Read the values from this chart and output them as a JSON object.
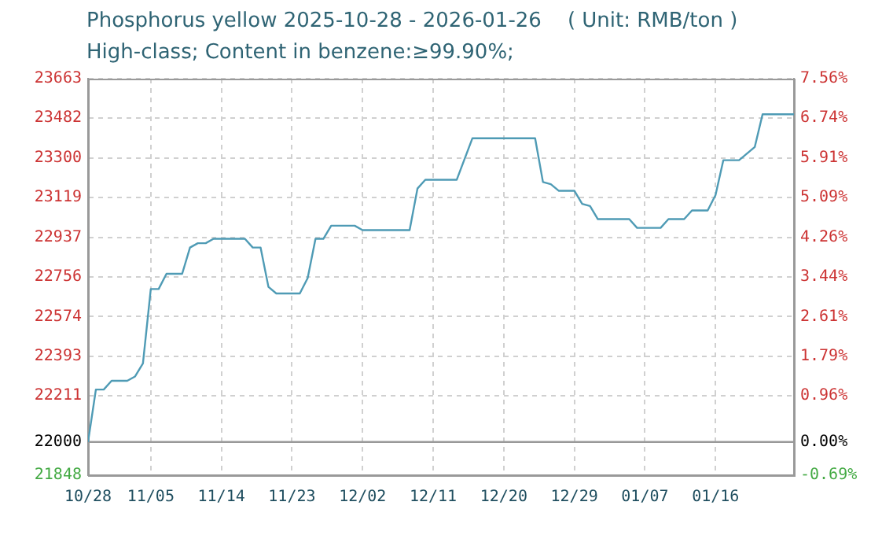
{
  "chart_data": {
    "type": "line",
    "title": "Phosphorus yellow 2025-10-28 - 2026-01-26    ( Unit: RMB/ton )",
    "subtitle": "High-class; Content in benzene:≥99.90%;",
    "x": [
      "2025-10-28",
      "2025-10-29",
      "2025-10-30",
      "2025-10-31",
      "2025-11-02",
      "2025-11-03",
      "2025-11-04",
      "2025-11-05",
      "2025-11-06",
      "2025-11-07",
      "2025-11-09",
      "2025-11-10",
      "2025-11-11",
      "2025-11-12",
      "2025-11-13",
      "2025-11-17",
      "2025-11-18",
      "2025-11-19",
      "2025-11-20",
      "2025-11-21",
      "2025-11-24",
      "2025-11-25",
      "2025-11-26",
      "2025-11-27",
      "2025-11-28",
      "2025-12-01",
      "2025-12-02",
      "2025-12-08",
      "2025-12-09",
      "2025-12-10",
      "2025-12-14",
      "2025-12-16",
      "2025-12-24",
      "2025-12-25",
      "2025-12-26",
      "2025-12-27",
      "2025-12-29",
      "2025-12-30",
      "2025-12-31",
      "2026-01-01",
      "2026-01-05",
      "2026-01-06",
      "2026-01-09",
      "2026-01-10",
      "2026-01-12",
      "2026-01-13",
      "2026-01-15",
      "2026-01-16",
      "2026-01-17",
      "2026-01-19",
      "2026-01-21",
      "2026-01-22",
      "2026-01-26"
    ],
    "series": [
      {
        "color": "#4f9bb5",
        "values": [
          22000,
          22240,
          22240,
          22280,
          22280,
          22300,
          22360,
          22700,
          22700,
          22770,
          22770,
          22890,
          22910,
          22910,
          22930,
          22930,
          22890,
          22890,
          22710,
          22680,
          22680,
          22750,
          22930,
          22930,
          22990,
          22990,
          22970,
          22970,
          23160,
          23200,
          23200,
          23390,
          23390,
          23190,
          23180,
          23150,
          23150,
          23090,
          23080,
          23020,
          23020,
          22980,
          22980,
          23020,
          23020,
          23060,
          23060,
          23130,
          23290,
          23290,
          23350,
          23500,
          23500
        ]
      }
    ],
    "xlim": [
      "2025-10-28",
      "2026-01-26"
    ],
    "xticks": [
      {
        "value": "2025-10-28",
        "label": "10/28"
      },
      {
        "value": "2025-11-05",
        "label": "11/05"
      },
      {
        "value": "2025-11-14",
        "label": "11/14"
      },
      {
        "value": "2025-11-23",
        "label": "11/23"
      },
      {
        "value": "2025-12-02",
        "label": "12/02"
      },
      {
        "value": "2025-12-11",
        "label": "12/11"
      },
      {
        "value": "2025-12-20",
        "label": "12/20"
      },
      {
        "value": "2025-12-29",
        "label": "12/29"
      },
      {
        "value": "2026-01-07",
        "label": "01/07"
      },
      {
        "value": "2026-01-16",
        "label": "01/16"
      }
    ],
    "ylim": [
      21848,
      23663
    ],
    "yticks": [
      21848,
      22000,
      22211,
      22393,
      22574,
      22756,
      22937,
      23119,
      23300,
      23482,
      23663
    ],
    "y2lim": [
      -0.69,
      7.56
    ],
    "y2ticks": [
      {
        "value": -0.69,
        "label": "-0.69%"
      },
      {
        "value": 0,
        "label": "0.00%"
      },
      {
        "value": 0.96,
        "label": "0.96%"
      },
      {
        "value": 1.79,
        "label": "1.79%"
      },
      {
        "value": 2.61,
        "label": "2.61%"
      },
      {
        "value": 3.44,
        "label": "3.44%"
      },
      {
        "value": 4.26,
        "label": "4.26%"
      },
      {
        "value": 5.09,
        "label": "5.09%"
      },
      {
        "value": 5.91,
        "label": "5.91%"
      },
      {
        "value": 6.74,
        "label": "6.74%"
      },
      {
        "value": 7.56,
        "label": "7.56%"
      }
    ],
    "ref_lines": [
      {
        "axis": "y",
        "value": 22000,
        "color": "#999999"
      }
    ],
    "grid": true,
    "legend": false,
    "marker": "none",
    "line_style": "solid"
  }
}
